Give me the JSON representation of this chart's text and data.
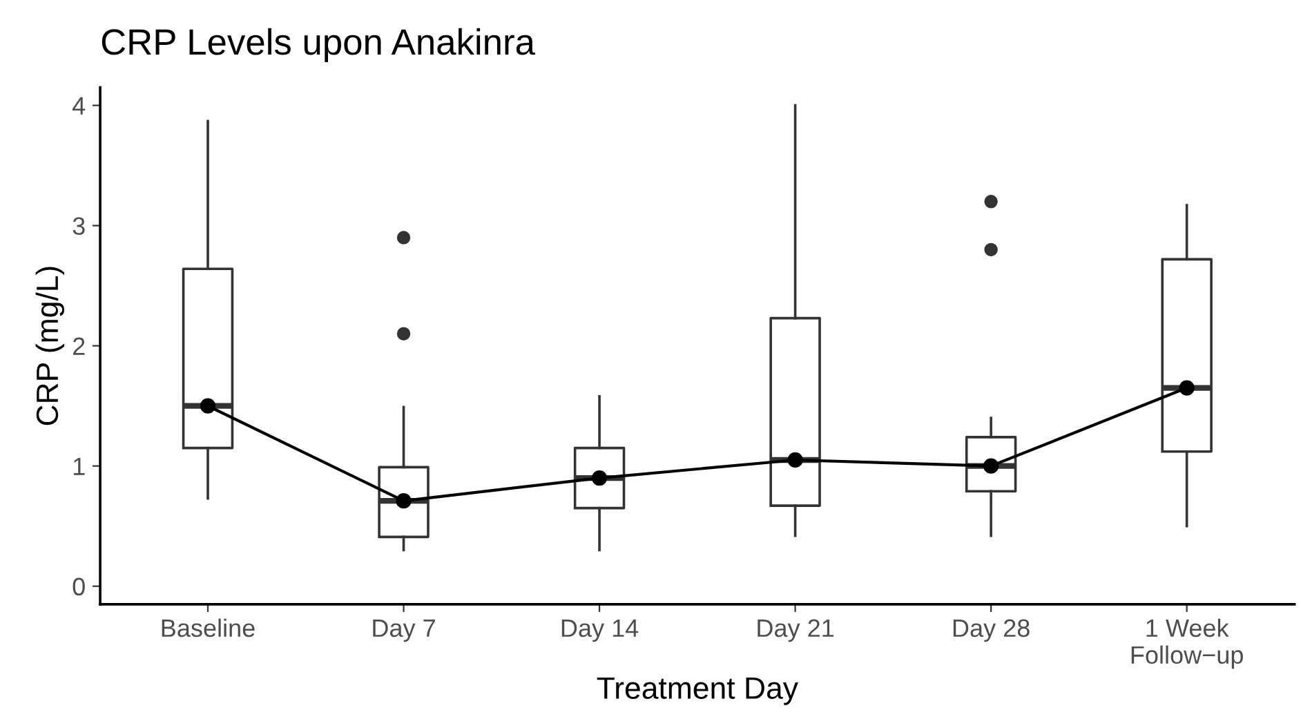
{
  "chart_data": {
    "type": "box",
    "title": "CRP Levels upon Anakinra",
    "xlabel": "Treatment Day",
    "ylabel": "CRP (mg/L)",
    "categories": [
      "Baseline",
      "Day 7",
      "Day 14",
      "Day 21",
      "Day 28",
      "1 Week\nFollow−up"
    ],
    "boxes": [
      {
        "low": 0.73,
        "q1": 1.15,
        "median": 1.5,
        "q3": 2.64,
        "high": 3.87
      },
      {
        "low": 0.3,
        "q1": 0.41,
        "median": 0.71,
        "q3": 0.99,
        "high": 1.49,
        "outliers": [
          2.9,
          2.1
        ]
      },
      {
        "low": 0.3,
        "q1": 0.65,
        "median": 0.9,
        "q3": 1.15,
        "high": 1.58
      },
      {
        "low": 0.42,
        "q1": 0.67,
        "median": 1.05,
        "q3": 2.23,
        "high": 4.0
      },
      {
        "low": 0.42,
        "q1": 0.79,
        "median": 1.0,
        "q3": 1.24,
        "high": 1.4,
        "outliers": [
          3.2,
          2.8
        ]
      },
      {
        "low": 0.5,
        "q1": 1.12,
        "median": 1.65,
        "q3": 2.72,
        "high": 3.17
      }
    ],
    "color": "#333333",
    "series": [
      {
        "type": "line",
        "color": "#000000",
        "marker": "circle",
        "line_style": "solid",
        "values": [
          1.5,
          0.71,
          0.9,
          1.05,
          1.0,
          1.65
        ]
      }
    ],
    "ylim": [
      -0.15,
      4.15
    ],
    "yticks": [
      0,
      1,
      2,
      3,
      4
    ],
    "grid": false,
    "legend": false
  }
}
